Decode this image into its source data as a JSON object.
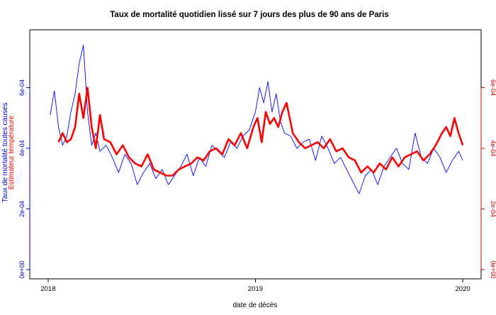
{
  "chart_data": {
    "type": "line",
    "title": "Taux de mortalité quotidien lissé sur 7 jours des plus de 90 ans de Paris",
    "xlabel": "date de décès",
    "ylabel_left": {
      "line1": "Taux de mortalité toutes causes",
      "line2": "Estimateur température"
    },
    "x_ticks": [
      "2018",
      "2019",
      "2020"
    ],
    "xlim": [
      2017.99,
      2020.01
    ],
    "ylim": [
      0,
      0.00077
    ],
    "y_ticks_left": [
      {
        "value": 0,
        "label": "0e+00"
      },
      {
        "value": 0.0002,
        "label": "2e-04"
      },
      {
        "value": 0.0004,
        "label": "4e-04"
      },
      {
        "value": 0.0006,
        "label": "6e-04"
      }
    ],
    "y_ticks_right": [
      {
        "value": 0,
        "label": "0e+00"
      },
      {
        "value": 0.0002,
        "label": "2e-04"
      },
      {
        "value": 0.0004,
        "label": "4e-04"
      },
      {
        "value": 0.0006,
        "label": "6e-04"
      }
    ],
    "colors": {
      "mortality": "#0000ff",
      "temperature": "#ff0000",
      "left_axis": "#0000cc",
      "right_axis": "#cc0000",
      "frame": "#000000"
    },
    "series": [
      {
        "name": "Taux de mortalité toutes causes",
        "x": [
          2018.01,
          2018.03,
          2018.05,
          2018.07,
          2018.09,
          2018.11,
          2018.13,
          2018.15,
          2018.17,
          2018.19,
          2018.21,
          2018.23,
          2018.25,
          2018.28,
          2018.31,
          2018.34,
          2018.37,
          2018.4,
          2018.43,
          2018.46,
          2018.49,
          2018.52,
          2018.55,
          2018.58,
          2018.61,
          2018.64,
          2018.67,
          2018.7,
          2018.73,
          2018.76,
          2018.79,
          2018.82,
          2018.85,
          2018.88,
          2018.91,
          2018.94,
          2018.97,
          2019.0,
          2019.02,
          2019.04,
          2019.06,
          2019.08,
          2019.1,
          2019.12,
          2019.14,
          2019.17,
          2019.2,
          2019.23,
          2019.26,
          2019.29,
          2019.32,
          2019.35,
          2019.38,
          2019.41,
          2019.44,
          2019.47,
          2019.5,
          2019.53,
          2019.56,
          2019.59,
          2019.62,
          2019.65,
          2019.68,
          2019.71,
          2019.74,
          2019.77,
          2019.8,
          2019.83,
          2019.86,
          2019.89,
          2019.92,
          2019.95,
          2019.98,
          2020.0
        ],
        "values": [
          0.00051,
          0.00059,
          0.00047,
          0.00041,
          0.00044,
          0.00052,
          0.00058,
          0.00068,
          0.00074,
          0.00052,
          0.00041,
          0.00045,
          0.00039,
          0.00041,
          0.00037,
          0.00032,
          0.00038,
          0.00035,
          0.00028,
          0.00032,
          0.00035,
          0.0003,
          0.00033,
          0.00028,
          0.00031,
          0.00034,
          0.00038,
          0.00031,
          0.00037,
          0.00034,
          0.00041,
          0.00039,
          0.00037,
          0.00042,
          0.0004,
          0.00044,
          0.00046,
          0.00052,
          0.0006,
          0.00055,
          0.00062,
          0.00052,
          0.00058,
          0.00049,
          0.00045,
          0.00044,
          0.0004,
          0.00042,
          0.00043,
          0.00036,
          0.00044,
          0.0004,
          0.00035,
          0.00037,
          0.00033,
          0.00029,
          0.00025,
          0.00031,
          0.00033,
          0.00028,
          0.00034,
          0.00037,
          0.0004,
          0.00035,
          0.00033,
          0.00045,
          0.00037,
          0.00035,
          0.0004,
          0.00037,
          0.00032,
          0.00036,
          0.00039,
          0.00036
        ]
      },
      {
        "name": "Estimateur température",
        "x": [
          2018.05,
          2018.07,
          2018.09,
          2018.11,
          2018.13,
          2018.15,
          2018.17,
          2018.19,
          2018.21,
          2018.23,
          2018.25,
          2018.27,
          2018.3,
          2018.33,
          2018.36,
          2018.39,
          2018.42,
          2018.45,
          2018.48,
          2018.51,
          2018.54,
          2018.57,
          2018.6,
          2018.63,
          2018.66,
          2018.69,
          2018.72,
          2018.75,
          2018.78,
          2018.81,
          2018.84,
          2018.87,
          2018.9,
          2018.93,
          2018.96,
          2018.99,
          2019.01,
          2019.03,
          2019.05,
          2019.07,
          2019.09,
          2019.11,
          2019.13,
          2019.15,
          2019.18,
          2019.21,
          2019.24,
          2019.27,
          2019.3,
          2019.33,
          2019.36,
          2019.39,
          2019.42,
          2019.45,
          2019.48,
          2019.51,
          2019.54,
          2019.57,
          2019.6,
          2019.63,
          2019.66,
          2019.69,
          2019.72,
          2019.75,
          2019.78,
          2019.81,
          2019.84,
          2019.87,
          2019.9,
          2019.92,
          2019.94,
          2019.96,
          2019.98,
          2020.0
        ],
        "values": [
          0.00042,
          0.00045,
          0.00042,
          0.00043,
          0.00047,
          0.00058,
          0.0005,
          0.0006,
          0.00047,
          0.0004,
          0.00051,
          0.00043,
          0.00042,
          0.00038,
          0.00041,
          0.00037,
          0.00035,
          0.00034,
          0.00038,
          0.00033,
          0.00032,
          0.00031,
          0.00031,
          0.00033,
          0.00034,
          0.00035,
          0.00037,
          0.00036,
          0.00039,
          0.0004,
          0.00038,
          0.00043,
          0.00041,
          0.00045,
          0.0004,
          0.00047,
          0.0005,
          0.00042,
          0.00052,
          0.00048,
          0.0005,
          0.00047,
          0.00052,
          0.00055,
          0.00045,
          0.00042,
          0.0004,
          0.00041,
          0.00042,
          0.0004,
          0.00043,
          0.00039,
          0.0004,
          0.00037,
          0.00036,
          0.00032,
          0.00034,
          0.00032,
          0.00035,
          0.00033,
          0.00037,
          0.00034,
          0.00037,
          0.00038,
          0.00039,
          0.00036,
          0.00038,
          0.00041,
          0.00045,
          0.00047,
          0.00044,
          0.0005,
          0.00045,
          0.00041
        ]
      }
    ]
  }
}
